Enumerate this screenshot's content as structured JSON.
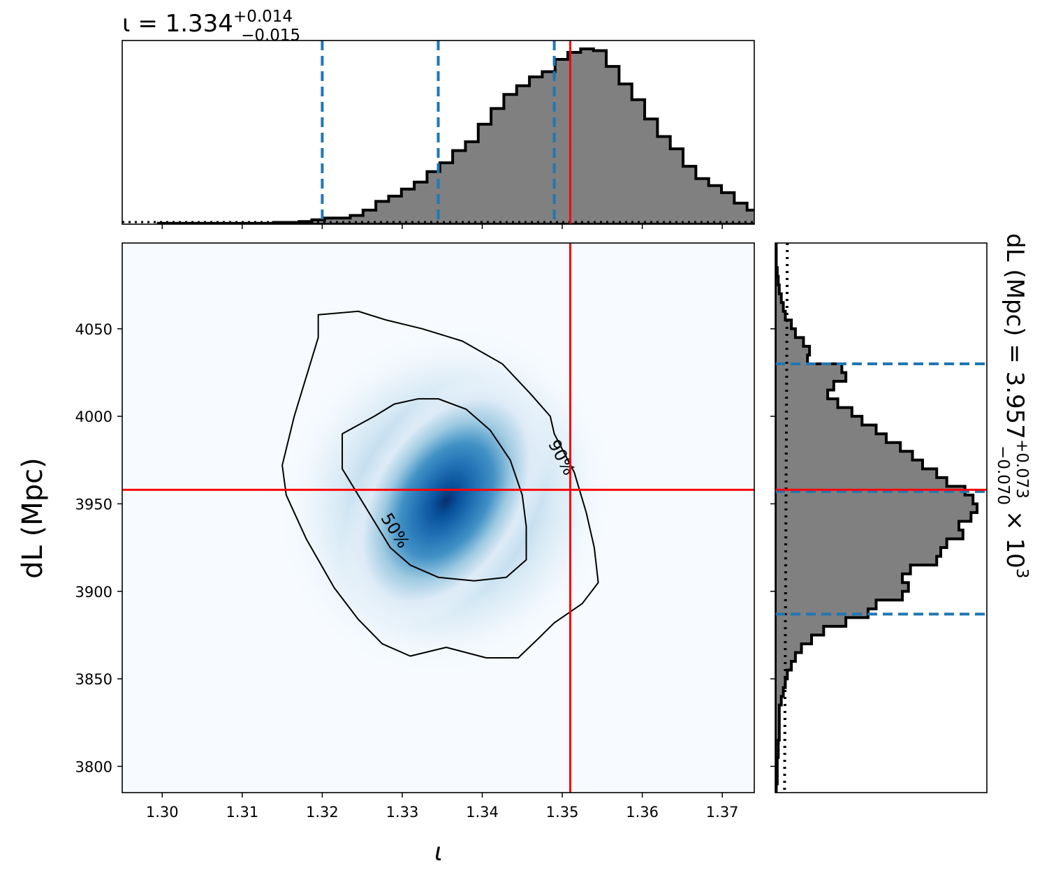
{
  "chart_data": [
    {
      "type": "histogram",
      "panel": "top-marginal",
      "title": {
        "main": "ι = 1.334",
        "sup": "+0.014",
        "sub": "−0.015"
      },
      "xlim": [
        1.295,
        1.374
      ],
      "bin_start": 1.2995,
      "bin_width": 0.0016,
      "counts": [
        0.005,
        0.005,
        0.005,
        0.005,
        0.005,
        0.005,
        0.005,
        0.005,
        0.005,
        0.01,
        0.01,
        0.015,
        0.025,
        0.035,
        0.035,
        0.05,
        0.08,
        0.13,
        0.16,
        0.2,
        0.24,
        0.3,
        0.35,
        0.42,
        0.47,
        0.57,
        0.66,
        0.74,
        0.79,
        0.84,
        0.87,
        0.94,
        0.98,
        1.0,
        0.99,
        0.9,
        0.8,
        0.71,
        0.6,
        0.5,
        0.43,
        0.33,
        0.26,
        0.22,
        0.18,
        0.12,
        0.08,
        0.05,
        0.03,
        0.015,
        0.015,
        0.01,
        0.01,
        0.01,
        0.005,
        0.005,
        0.005,
        0.005,
        0.005,
        0.005,
        0.005,
        0.005
      ],
      "quantiles": [
        1.32,
        1.3345,
        1.349
      ],
      "truth": 1.351,
      "prior_level": 0.012,
      "colors": {
        "fill": "#808080",
        "edge": "#000000",
        "quantile": "#1f77b4",
        "truth": "#ff0000"
      }
    },
    {
      "type": "heatmap",
      "panel": "joint-density",
      "xlabel": "ι",
      "ylabel": "dL (Mpc)",
      "xlim": [
        1.295,
        1.374
      ],
      "ylim": [
        3785,
        4099
      ],
      "x_ticks": [
        "1.30",
        "1.31",
        "1.32",
        "1.33",
        "1.34",
        "1.35",
        "1.36",
        "1.37"
      ],
      "y_ticks": [
        "3800",
        "3850",
        "3900",
        "3950",
        "4000",
        "4050"
      ],
      "x_tick_values": [
        1.3,
        1.31,
        1.32,
        1.33,
        1.34,
        1.35,
        1.36,
        1.37
      ],
      "y_tick_values": [
        3800,
        3850,
        3900,
        3950,
        4000,
        4050
      ],
      "density_peak": {
        "x": 1.3355,
        "y": 3952
      },
      "contours": [
        {
          "label": "50%",
          "points": [
            [
              1.3265,
              4000
            ],
            [
              1.329,
              4007
            ],
            [
              1.332,
              4010
            ],
            [
              1.3345,
              4010
            ],
            [
              1.338,
              4004
            ],
            [
              1.341,
              3992
            ],
            [
              1.3435,
              3975
            ],
            [
              1.345,
              3955
            ],
            [
              1.3455,
              3937
            ],
            [
              1.3455,
              3918
            ],
            [
              1.343,
              3908
            ],
            [
              1.339,
              3906
            ],
            [
              1.3345,
              3908
            ],
            [
              1.331,
              3915
            ],
            [
              1.3285,
              3925
            ],
            [
              1.3265,
              3940
            ],
            [
              1.3245,
              3955
            ],
            [
              1.3225,
              3970
            ],
            [
              1.3225,
              3990
            ]
          ]
        },
        {
          "label": "90%",
          "points": [
            [
              1.3195,
              4058
            ],
            [
              1.3245,
              4060
            ],
            [
              1.328,
              4055
            ],
            [
              1.3325,
              4050
            ],
            [
              1.3375,
              4043
            ],
            [
              1.3425,
              4030
            ],
            [
              1.346,
              4013
            ],
            [
              1.3485,
              4000
            ],
            [
              1.349,
              3990
            ],
            [
              1.3515,
              3968
            ],
            [
              1.353,
              3945
            ],
            [
              1.354,
              3925
            ],
            [
              1.3545,
              3905
            ],
            [
              1.3525,
              3893
            ],
            [
              1.349,
              3882
            ],
            [
              1.347,
              3873
            ],
            [
              1.3445,
              3862
            ],
            [
              1.3405,
              3862
            ],
            [
              1.3355,
              3868
            ],
            [
              1.331,
              3863
            ],
            [
              1.3275,
              3870
            ],
            [
              1.3245,
              3884
            ],
            [
              1.3215,
              3902
            ],
            [
              1.318,
              3930
            ],
            [
              1.3155,
              3955
            ],
            [
              1.315,
              3972
            ],
            [
              1.3165,
              4000
            ],
            [
              1.3185,
              4030
            ],
            [
              1.3195,
              4045
            ]
          ]
        }
      ],
      "truth": {
        "x": 1.351,
        "y": 3958
      },
      "colors": {
        "cmap_low": "#f7fbff",
        "cmap_high": "#08306b",
        "contour": "#000000",
        "truth": "#ff0000"
      }
    },
    {
      "type": "histogram",
      "panel": "right-marginal",
      "orientation": "horizontal",
      "title": {
        "main": "dL (Mpc) = 3.957",
        "sup": "+0.073",
        "sub": "−0.070",
        "suffix": "× 10",
        "exp": "3"
      },
      "ylim": [
        3785,
        4099
      ],
      "bin_start": 3785,
      "bin_width": 5,
      "counts": [
        0.005,
        0.01,
        0.01,
        0.01,
        0.015,
        0.015,
        0.02,
        0.02,
        0.02,
        0.02,
        0.03,
        0.04,
        0.05,
        0.06,
        0.08,
        0.1,
        0.13,
        0.18,
        0.24,
        0.35,
        0.46,
        0.5,
        0.63,
        0.66,
        0.63,
        0.67,
        0.8,
        0.82,
        0.85,
        0.93,
        0.91,
        0.97,
        1.0,
        0.98,
        0.94,
        0.85,
        0.8,
        0.73,
        0.68,
        0.62,
        0.55,
        0.5,
        0.43,
        0.38,
        0.31,
        0.26,
        0.29,
        0.35,
        0.33,
        0.16,
        0.17,
        0.14,
        0.1,
        0.08,
        0.05,
        0.04,
        0.03,
        0.02,
        0.015,
        0.01,
        0.005,
        0.005,
        0.005
      ],
      "quantiles": [
        3887,
        3957,
        4030
      ],
      "truth": 3958,
      "prior_level": 0.06,
      "colors": {
        "fill": "#808080",
        "edge": "#000000",
        "quantile": "#1f77b4",
        "truth": "#ff0000"
      }
    }
  ]
}
